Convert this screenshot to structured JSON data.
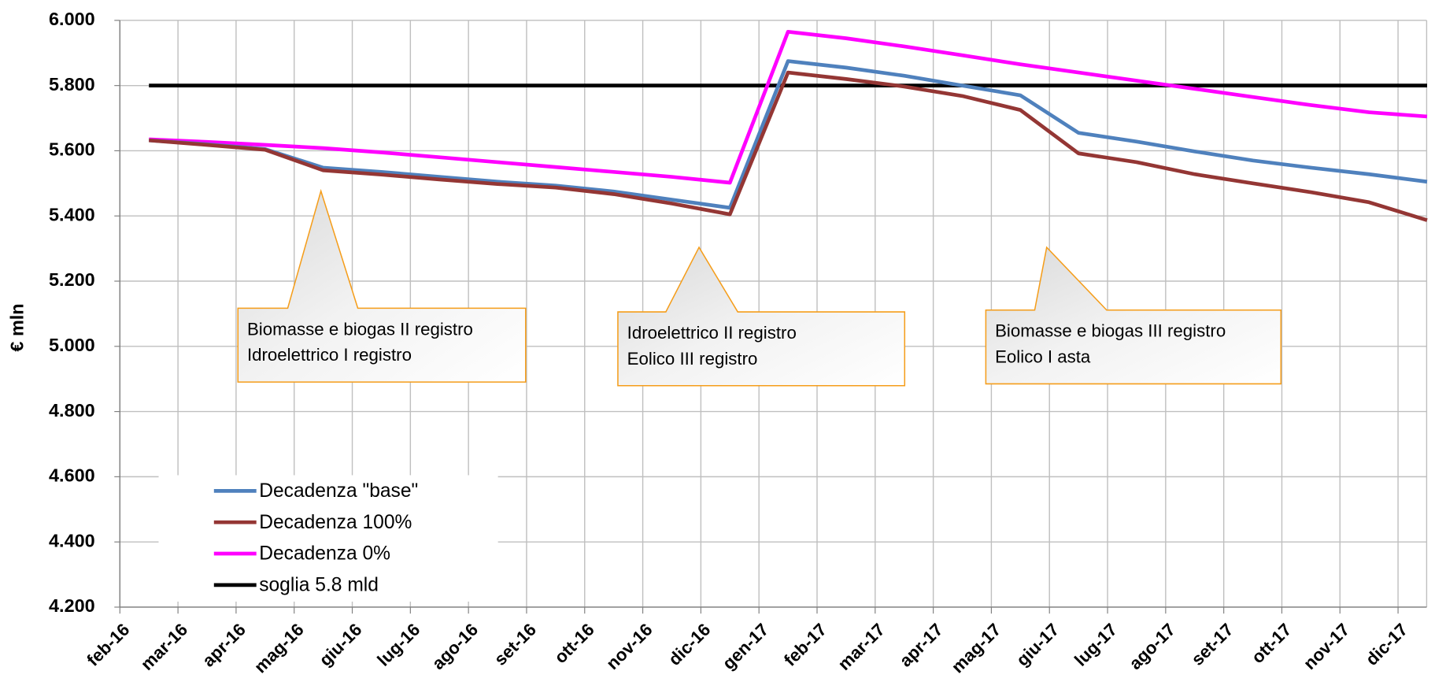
{
  "chart_data": {
    "type": "line",
    "y_label": "€ mln",
    "categories": [
      "feb-16",
      "mar-16",
      "apr-16",
      "mag-16",
      "giu-16",
      "lug-16",
      "ago-16",
      "set-16",
      "ott-16",
      "nov-16",
      "dic-16",
      "gen-17",
      "feb-17",
      "mar-17",
      "apr-17",
      "mag-17",
      "giu-17",
      "lug-17",
      "ago-17",
      "set-17",
      "ott-17",
      "nov-17",
      "dic-17"
    ],
    "series": [
      {
        "name": "Decadenza \"base\"",
        "color": "#4f81bd",
        "values": [
          5632,
          5620,
          5605,
          5548,
          5535,
          5520,
          5505,
          5493,
          5475,
          5450,
          5425,
          5875,
          5855,
          5830,
          5800,
          5770,
          5655,
          5628,
          5598,
          5570,
          5548,
          5528,
          5505
        ]
      },
      {
        "name": "Decadenza 100%",
        "color": "#943634",
        "values": [
          5632,
          5618,
          5603,
          5540,
          5527,
          5512,
          5498,
          5487,
          5467,
          5438,
          5405,
          5840,
          5820,
          5797,
          5768,
          5725,
          5592,
          5565,
          5528,
          5500,
          5473,
          5442,
          5387
        ]
      },
      {
        "name": "Decadenza 0%",
        "color": "#ff00ff",
        "values": [
          5635,
          5627,
          5618,
          5608,
          5595,
          5580,
          5565,
          5550,
          5535,
          5520,
          5502,
          5965,
          5945,
          5920,
          5893,
          5865,
          5840,
          5815,
          5790,
          5765,
          5740,
          5718,
          5705
        ]
      },
      {
        "name": "soglia 5.8 mld",
        "color": "#000000",
        "values": [
          5800,
          5800,
          5800,
          5800,
          5800,
          5800,
          5800,
          5800,
          5800,
          5800,
          5800,
          5800,
          5800,
          5800,
          5800,
          5800,
          5800,
          5800,
          5800,
          5800,
          5800,
          5800,
          5800
        ]
      }
    ],
    "ylim": [
      4200,
      6000
    ],
    "yticks": [
      {
        "value": 4200,
        "label": "4.200"
      },
      {
        "value": 4400,
        "label": "4.400"
      },
      {
        "value": 4600,
        "label": "4.600"
      },
      {
        "value": 4800,
        "label": "4.800"
      },
      {
        "value": 5000,
        "label": "5.000"
      },
      {
        "value": 5200,
        "label": "5.200"
      },
      {
        "value": 5400,
        "label": "5.400"
      },
      {
        "value": 5600,
        "label": "5.600"
      },
      {
        "value": 5800,
        "label": "5.800"
      },
      {
        "value": 6000,
        "label": "6.000"
      }
    ],
    "grid": true,
    "legend_position": "lower-left",
    "annotations": [
      {
        "lines": [
          "Biomasse e biogas II registro",
          "Idroelettrico I registro"
        ]
      },
      {
        "lines": [
          "Idroelettrico II registro",
          "Eolico III registro"
        ]
      },
      {
        "lines": [
          "Biomasse e biogas III registro",
          "Eolico I asta"
        ]
      }
    ]
  }
}
